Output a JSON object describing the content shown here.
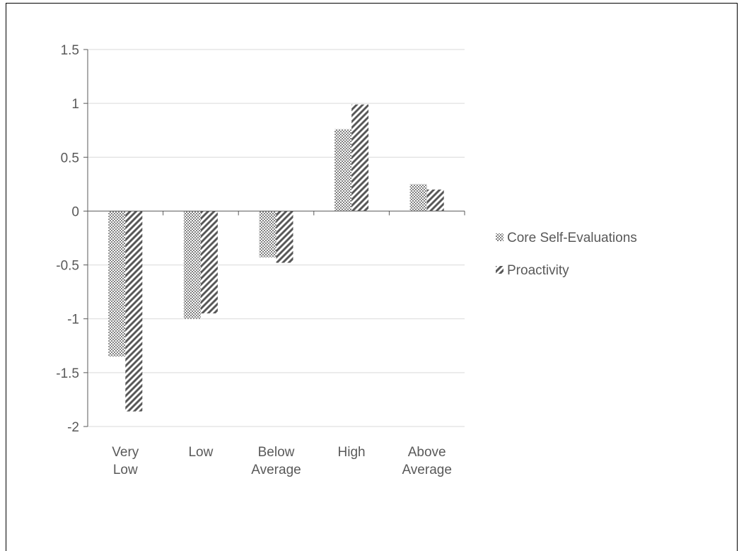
{
  "chart_data": {
    "type": "bar",
    "categories": [
      [
        "Very",
        "Low"
      ],
      [
        "Low"
      ],
      [
        "Below",
        "Average"
      ],
      [
        "High"
      ],
      [
        "Above",
        "Average"
      ]
    ],
    "series": [
      {
        "name": "Core Self-Evaluations",
        "values": [
          -1.35,
          -1.0,
          -0.43,
          0.76,
          0.25
        ],
        "pattern": "dots"
      },
      {
        "name": "Proactivity",
        "values": [
          -1.86,
          -0.95,
          -0.48,
          0.99,
          0.2
        ],
        "pattern": "stripes"
      }
    ],
    "ylim": [
      -2,
      1.5
    ],
    "yticks": [
      "1.5",
      "1",
      "0.5",
      "0",
      "-0.5",
      "-1",
      "-1.5",
      "-2"
    ],
    "ytick_values": [
      1.5,
      1,
      0.5,
      0,
      -0.5,
      -1,
      -1.5,
      -2
    ],
    "grid": true,
    "legend_position": "right",
    "colors": {
      "bar_pattern": "#595959",
      "grid": "#d9d9d9",
      "axis": "#595959",
      "text": "#595959"
    }
  }
}
